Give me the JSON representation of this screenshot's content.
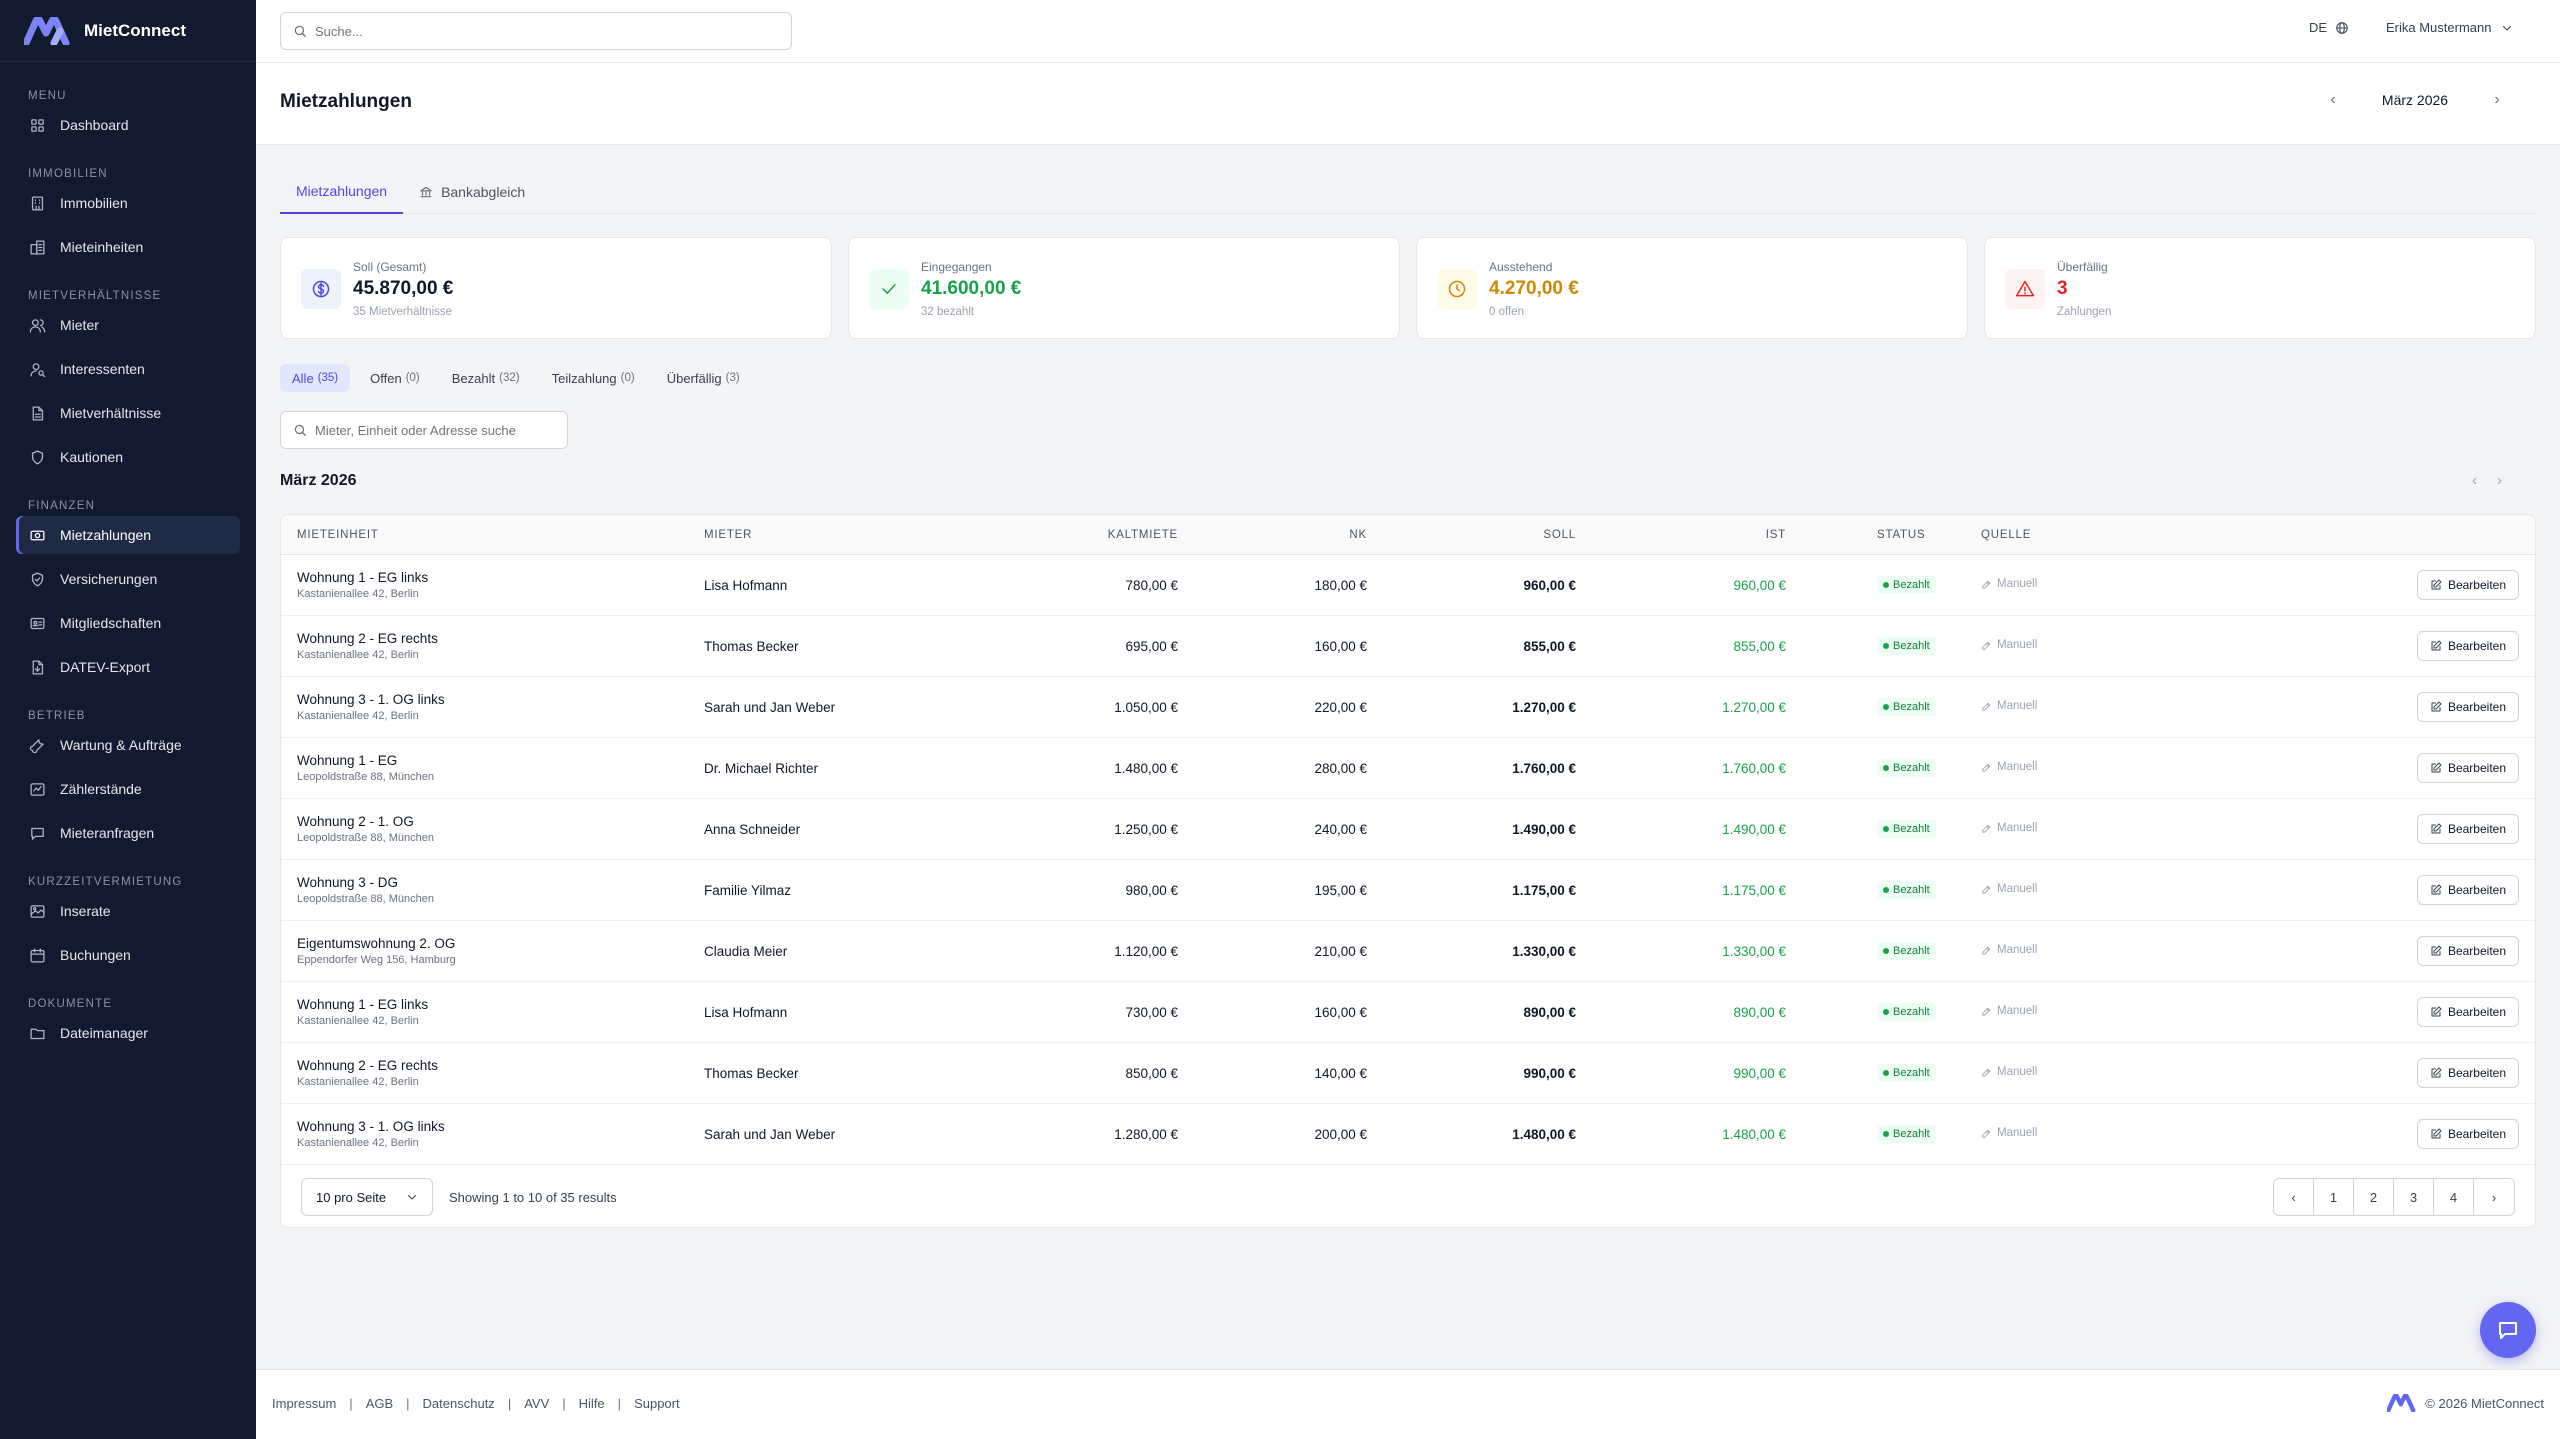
{
  "app": {
    "name": "MietConnect"
  },
  "sidebar": {
    "sections": [
      {
        "title": "Menu",
        "items": [
          {
            "label": "Dashboard",
            "icon": "grid-icon"
          }
        ]
      },
      {
        "title": "Immobilien",
        "items": [
          {
            "label": "Immobilien",
            "icon": "building-icon"
          },
          {
            "label": "Mieteinheiten",
            "icon": "units-icon"
          }
        ]
      },
      {
        "title": "Mietverhältnisse",
        "items": [
          {
            "label": "Mieter",
            "icon": "users-icon"
          },
          {
            "label": "Interessenten",
            "icon": "user-search-icon"
          },
          {
            "label": "Mietverhältnisse",
            "icon": "document-icon"
          },
          {
            "label": "Kautionen",
            "icon": "shield-icon"
          }
        ]
      },
      {
        "title": "Finanzen",
        "items": [
          {
            "label": "Mietzahlungen",
            "icon": "banknote-icon"
          },
          {
            "label": "Versicherungen",
            "icon": "shield-check-icon"
          },
          {
            "label": "Mitgliedschaften",
            "icon": "id-card-icon"
          },
          {
            "label": "DATEV-Export",
            "icon": "export-icon"
          }
        ]
      },
      {
        "title": "Betrieb",
        "items": [
          {
            "label": "Wartung & Aufträge",
            "icon": "wrench-icon"
          },
          {
            "label": "Zählerstände",
            "icon": "meter-icon"
          },
          {
            "label": "Mieteranfragen",
            "icon": "chat-icon"
          }
        ]
      },
      {
        "title": "Kurzzeitvermietung",
        "items": [
          {
            "label": "Inserate",
            "icon": "listing-icon"
          },
          {
            "label": "Buchungen",
            "icon": "calendar-icon"
          }
        ]
      },
      {
        "title": "Dokumente",
        "items": [
          {
            "label": "Dateimanager",
            "icon": "folder-icon"
          }
        ]
      }
    ],
    "active": "Mietzahlungen"
  },
  "topbar": {
    "search_placeholder": "Suche...",
    "language": "DE",
    "user_name": "Erika Mustermann"
  },
  "header": {
    "title": "Mietzahlungen",
    "month": "März 2026"
  },
  "tabs": [
    {
      "label": "Mietzahlungen",
      "active": true
    },
    {
      "label": "Bankabgleich",
      "active": false
    }
  ],
  "stats": [
    {
      "label": "Soll (Gesamt)",
      "value": "45.870,00 €",
      "sub": "35 Mietverhältnisse",
      "color": "#111827",
      "icon_bg": "#eef2ff",
      "icon_color": "#4f46e5",
      "icon": "dollar-icon"
    },
    {
      "label": "Eingegangen",
      "value": "41.600,00 €",
      "sub": "32 bezahlt",
      "color": "#16a34a",
      "icon_bg": "#ecfdf3",
      "icon_color": "#16a34a",
      "icon": "check-icon"
    },
    {
      "label": "Ausstehend",
      "value": "4.270,00 €",
      "sub": "0 offen",
      "color": "#ca8a04",
      "icon_bg": "#fefce8",
      "icon_color": "#ca8a04",
      "icon": "clock-icon"
    },
    {
      "label": "Überfällig",
      "value": "3",
      "sub": "Zahlungen",
      "color": "#dc2626",
      "icon_bg": "#fef2f2",
      "icon_color": "#dc2626",
      "icon": "alert-icon"
    }
  ],
  "filters": [
    {
      "label": "Alle",
      "count": "(35)",
      "active": true
    },
    {
      "label": "Offen",
      "count": "(0)",
      "active": false
    },
    {
      "label": "Bezahlt",
      "count": "(32)",
      "active": false
    },
    {
      "label": "Teilzahlung",
      "count": "(0)",
      "active": false
    },
    {
      "label": "Überfällig",
      "count": "(3)",
      "active": false
    }
  ],
  "table_search_placeholder": "Mieter, Einheit oder Adresse suche",
  "section_title": "März 2026",
  "table": {
    "columns": [
      "Mieteinheit",
      "Mieter",
      "Kaltmiete",
      "NK",
      "Soll",
      "Ist",
      "Status",
      "Quelle"
    ],
    "rows": [
      {
        "unit": "Wohnung 1 - EG links",
        "address": "Kastanienallee 42, Berlin",
        "tenant": "Lisa Hofmann",
        "kalt": "780,00 €",
        "nk": "180,00 €",
        "soll": "960,00 €",
        "ist": "960,00 €",
        "status": "Bezahlt",
        "quelle": "Manuell",
        "action": "Bearbeiten"
      },
      {
        "unit": "Wohnung 2 - EG rechts",
        "address": "Kastanienallee 42, Berlin",
        "tenant": "Thomas Becker",
        "kalt": "695,00 €",
        "nk": "160,00 €",
        "soll": "855,00 €",
        "ist": "855,00 €",
        "status": "Bezahlt",
        "quelle": "Manuell",
        "action": "Bearbeiten"
      },
      {
        "unit": "Wohnung 3 - 1. OG links",
        "address": "Kastanienallee 42, Berlin",
        "tenant": "Sarah und Jan Weber",
        "kalt": "1.050,00 €",
        "nk": "220,00 €",
        "soll": "1.270,00 €",
        "ist": "1.270,00 €",
        "status": "Bezahlt",
        "quelle": "Manuell",
        "action": "Bearbeiten"
      },
      {
        "unit": "Wohnung 1 - EG",
        "address": "Leopoldstraße 88, München",
        "tenant": "Dr. Michael Richter",
        "kalt": "1.480,00 €",
        "nk": "280,00 €",
        "soll": "1.760,00 €",
        "ist": "1.760,00 €",
        "status": "Bezahlt",
        "quelle": "Manuell",
        "action": "Bearbeiten"
      },
      {
        "unit": "Wohnung 2 - 1. OG",
        "address": "Leopoldstraße 88, München",
        "tenant": "Anna Schneider",
        "kalt": "1.250,00 €",
        "nk": "240,00 €",
        "soll": "1.490,00 €",
        "ist": "1.490,00 €",
        "status": "Bezahlt",
        "quelle": "Manuell",
        "action": "Bearbeiten"
      },
      {
        "unit": "Wohnung 3 - DG",
        "address": "Leopoldstraße 88, München",
        "tenant": "Familie Yilmaz",
        "kalt": "980,00 €",
        "nk": "195,00 €",
        "soll": "1.175,00 €",
        "ist": "1.175,00 €",
        "status": "Bezahlt",
        "quelle": "Manuell",
        "action": "Bearbeiten"
      },
      {
        "unit": "Eigentumswohnung 2. OG",
        "address": "Eppendorfer Weg 156, Hamburg",
        "tenant": "Claudia Meier",
        "kalt": "1.120,00 €",
        "nk": "210,00 €",
        "soll": "1.330,00 €",
        "ist": "1.330,00 €",
        "status": "Bezahlt",
        "quelle": "Manuell",
        "action": "Bearbeiten"
      },
      {
        "unit": "Wohnung 1 - EG links",
        "address": "Kastanienallee 42, Berlin",
        "tenant": "Lisa Hofmann",
        "kalt": "730,00 €",
        "nk": "160,00 €",
        "soll": "890,00 €",
        "ist": "890,00 €",
        "status": "Bezahlt",
        "quelle": "Manuell",
        "action": "Bearbeiten"
      },
      {
        "unit": "Wohnung 2 - EG rechts",
        "address": "Kastanienallee 42, Berlin",
        "tenant": "Thomas Becker",
        "kalt": "850,00 €",
        "nk": "140,00 €",
        "soll": "990,00 €",
        "ist": "990,00 €",
        "status": "Bezahlt",
        "quelle": "Manuell",
        "action": "Bearbeiten"
      },
      {
        "unit": "Wohnung 3 - 1. OG links",
        "address": "Kastanienallee 42, Berlin",
        "tenant": "Sarah und Jan Weber",
        "kalt": "1.280,00 €",
        "nk": "200,00 €",
        "soll": "1.480,00 €",
        "ist": "1.480,00 €",
        "status": "Bezahlt",
        "quelle": "Manuell",
        "action": "Bearbeiten"
      }
    ]
  },
  "pagination": {
    "per_page": "10 pro Seite",
    "showing": "Showing 1 to 10 of 35 results",
    "pages": [
      "1",
      "2",
      "3",
      "4"
    ]
  },
  "footer": {
    "links": [
      "Impressum",
      "AGB",
      "Datenschutz",
      "AVV",
      "Hilfe",
      "Support"
    ],
    "copyright": "© 2026 MietConnect"
  },
  "colors": {
    "accent": "#6366f1",
    "sidebar_bg": "#111a2e",
    "success": "#16a34a"
  }
}
